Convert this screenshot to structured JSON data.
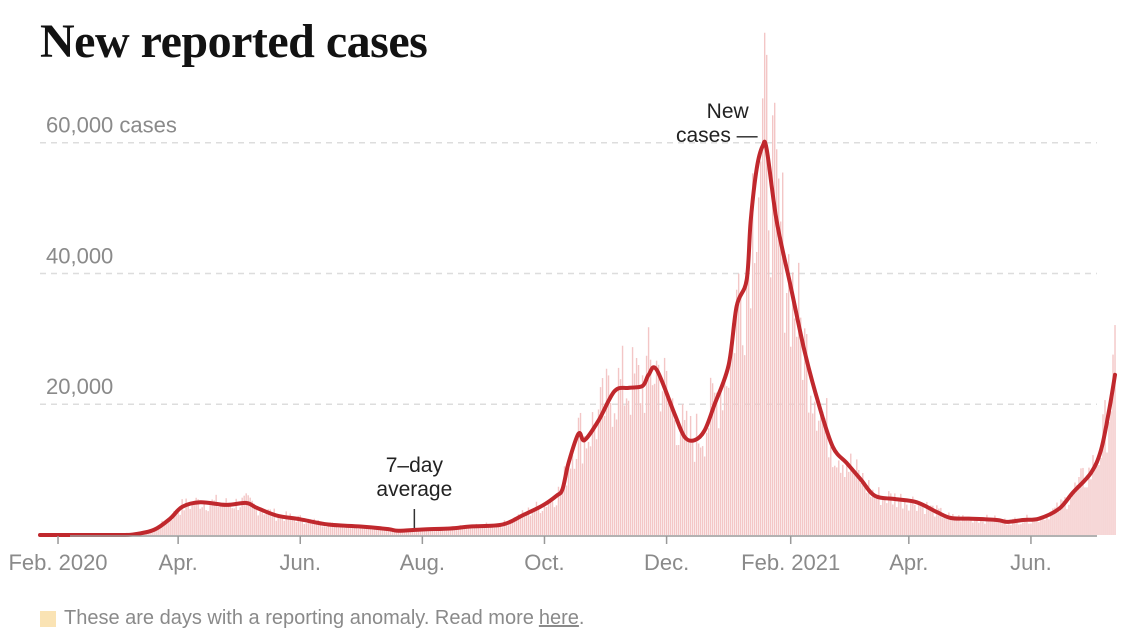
{
  "page": {
    "title": "New reported cases"
  },
  "note": {
    "text": "These are days with a reporting anomaly. Read more",
    "link_text": "here",
    "trailing": ".",
    "swatch_color": "#fae3b4"
  },
  "colors": {
    "line": "#c0282d",
    "bars": "#f3c6c6",
    "grid": "#dddddd",
    "axis_text": "#8a8a8a"
  },
  "chart_data": {
    "type": "area",
    "title": "New reported cases",
    "xlabel": "",
    "ylabel": "cases",
    "ylim": [
      0,
      65000
    ],
    "x_start": "2020-01-23",
    "x_end": "2021-07-04",
    "y_ticks": [
      {
        "value": 20000,
        "label": "20,000"
      },
      {
        "value": 40000,
        "label": "40,000"
      },
      {
        "value": 60000,
        "label": "60,000 cases"
      }
    ],
    "x_ticks": [
      {
        "date": "2020-02-01",
        "label": "Feb. 2020"
      },
      {
        "date": "2020-04-01",
        "label": "Apr."
      },
      {
        "date": "2020-06-01",
        "label": "Jun."
      },
      {
        "date": "2020-08-01",
        "label": "Aug."
      },
      {
        "date": "2020-10-01",
        "label": "Oct."
      },
      {
        "date": "2020-12-01",
        "label": "Dec."
      },
      {
        "date": "2021-02-01",
        "label": "Feb. 2021"
      },
      {
        "date": "2021-04-01",
        "label": "Apr."
      },
      {
        "date": "2021-06-01",
        "label": "Jun."
      }
    ],
    "series": [
      {
        "name": "7-day average",
        "points": [
          [
            "2020-01-23",
            0
          ],
          [
            "2020-03-01",
            0
          ],
          [
            "2020-03-10",
            100
          ],
          [
            "2020-03-20",
            800
          ],
          [
            "2020-03-28",
            2500
          ],
          [
            "2020-04-03",
            4300
          ],
          [
            "2020-04-12",
            5000
          ],
          [
            "2020-04-25",
            4600
          ],
          [
            "2020-05-05",
            4900
          ],
          [
            "2020-05-10",
            4200
          ],
          [
            "2020-05-20",
            3000
          ],
          [
            "2020-06-01",
            2400
          ],
          [
            "2020-06-15",
            1600
          ],
          [
            "2020-07-01",
            1300
          ],
          [
            "2020-07-15",
            900
          ],
          [
            "2020-07-20",
            650
          ],
          [
            "2020-08-01",
            850
          ],
          [
            "2020-08-15",
            1000
          ],
          [
            "2020-08-25",
            1300
          ],
          [
            "2020-09-10",
            1600
          ],
          [
            "2020-09-20",
            3000
          ],
          [
            "2020-09-30",
            4500
          ],
          [
            "2020-10-07",
            6000
          ],
          [
            "2020-10-10",
            7000
          ],
          [
            "2020-10-13",
            11000
          ],
          [
            "2020-10-18",
            15500
          ],
          [
            "2020-10-21",
            14500
          ],
          [
            "2020-10-28",
            17500
          ],
          [
            "2020-11-05",
            22000
          ],
          [
            "2020-11-12",
            22500
          ],
          [
            "2020-11-19",
            22800
          ],
          [
            "2020-11-22",
            24500
          ],
          [
            "2020-11-26",
            25300
          ],
          [
            "2020-12-05",
            18500
          ],
          [
            "2020-12-10",
            15000
          ],
          [
            "2020-12-15",
            14500
          ],
          [
            "2020-12-20",
            16000
          ],
          [
            "2020-12-25",
            20000
          ],
          [
            "2021-01-01",
            26000
          ],
          [
            "2021-01-05",
            35000
          ],
          [
            "2021-01-10",
            39000
          ],
          [
            "2021-01-12",
            48000
          ],
          [
            "2021-01-15",
            56000
          ],
          [
            "2021-01-18",
            59500
          ],
          [
            "2021-01-20",
            59000
          ],
          [
            "2021-01-25",
            48000
          ],
          [
            "2021-02-01",
            38000
          ],
          [
            "2021-02-08",
            28000
          ],
          [
            "2021-02-15",
            20000
          ],
          [
            "2021-02-22",
            13500
          ],
          [
            "2021-03-01",
            11000
          ],
          [
            "2021-03-08",
            8500
          ],
          [
            "2021-03-15",
            6000
          ],
          [
            "2021-03-25",
            5500
          ],
          [
            "2021-04-05",
            5000
          ],
          [
            "2021-04-15",
            3500
          ],
          [
            "2021-04-22",
            2600
          ],
          [
            "2021-05-01",
            2500
          ],
          [
            "2021-05-15",
            2300
          ],
          [
            "2021-05-20",
            2000
          ],
          [
            "2021-05-28",
            2300
          ],
          [
            "2021-06-05",
            2500
          ],
          [
            "2021-06-15",
            4000
          ],
          [
            "2021-06-22",
            6500
          ],
          [
            "2021-07-01",
            9500
          ],
          [
            "2021-07-06",
            13000
          ],
          [
            "2021-07-10",
            19000
          ],
          [
            "2021-07-13",
            24500
          ]
        ]
      }
    ],
    "annotations": [
      {
        "text_lines": [
          "New",
          "cases —"
        ],
        "target_date": "2021-01-18",
        "target_value": 67000,
        "style": "dash-right"
      },
      {
        "text_lines": [
          "7–day",
          "average"
        ],
        "target_date": "2020-07-28",
        "target_value": 800,
        "style": "tick-below"
      }
    ]
  }
}
